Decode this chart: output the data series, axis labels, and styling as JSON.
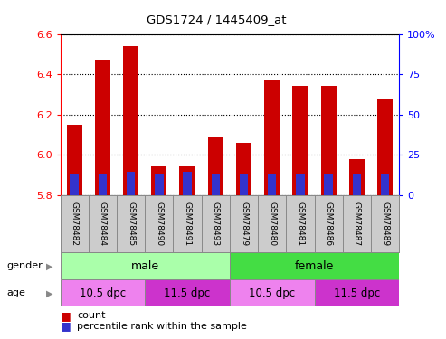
{
  "title": "GDS1724 / 1445409_at",
  "samples": [
    "GSM78482",
    "GSM78484",
    "GSM78485",
    "GSM78490",
    "GSM78491",
    "GSM78493",
    "GSM78479",
    "GSM78480",
    "GSM78481",
    "GSM78486",
    "GSM78487",
    "GSM78489"
  ],
  "count_values": [
    6.15,
    6.47,
    6.54,
    5.94,
    5.94,
    6.09,
    6.06,
    6.37,
    6.34,
    6.34,
    5.98,
    6.28
  ],
  "percentile_values": [
    5.905,
    5.905,
    5.915,
    5.905,
    5.915,
    5.905,
    5.905,
    5.905,
    5.905,
    5.905,
    5.905,
    5.905
  ],
  "bar_base": 5.8,
  "ylim": [
    5.8,
    6.6
  ],
  "y2lim": [
    0,
    100
  ],
  "yticks": [
    5.8,
    6.0,
    6.2,
    6.4,
    6.6
  ],
  "y2ticks": [
    0,
    25,
    50,
    75,
    100
  ],
  "y2ticklabels": [
    "0",
    "25",
    "50",
    "75",
    "100%"
  ],
  "bar_color": "#cc0000",
  "percentile_color": "#3333cc",
  "gender_labels": [
    {
      "label": "male",
      "start": 0,
      "end": 6,
      "color": "#aaffaa"
    },
    {
      "label": "female",
      "start": 6,
      "end": 12,
      "color": "#44dd44"
    }
  ],
  "age_labels": [
    {
      "label": "10.5 dpc",
      "start": 0,
      "end": 3,
      "color": "#ee82ee"
    },
    {
      "label": "11.5 dpc",
      "start": 3,
      "end": 6,
      "color": "#cc33cc"
    },
    {
      "label": "10.5 dpc",
      "start": 6,
      "end": 9,
      "color": "#ee82ee"
    },
    {
      "label": "11.5 dpc",
      "start": 9,
      "end": 12,
      "color": "#cc33cc"
    }
  ],
  "bar_width": 0.55,
  "xlabels_bg": "#cccccc",
  "border_color": "#888888"
}
